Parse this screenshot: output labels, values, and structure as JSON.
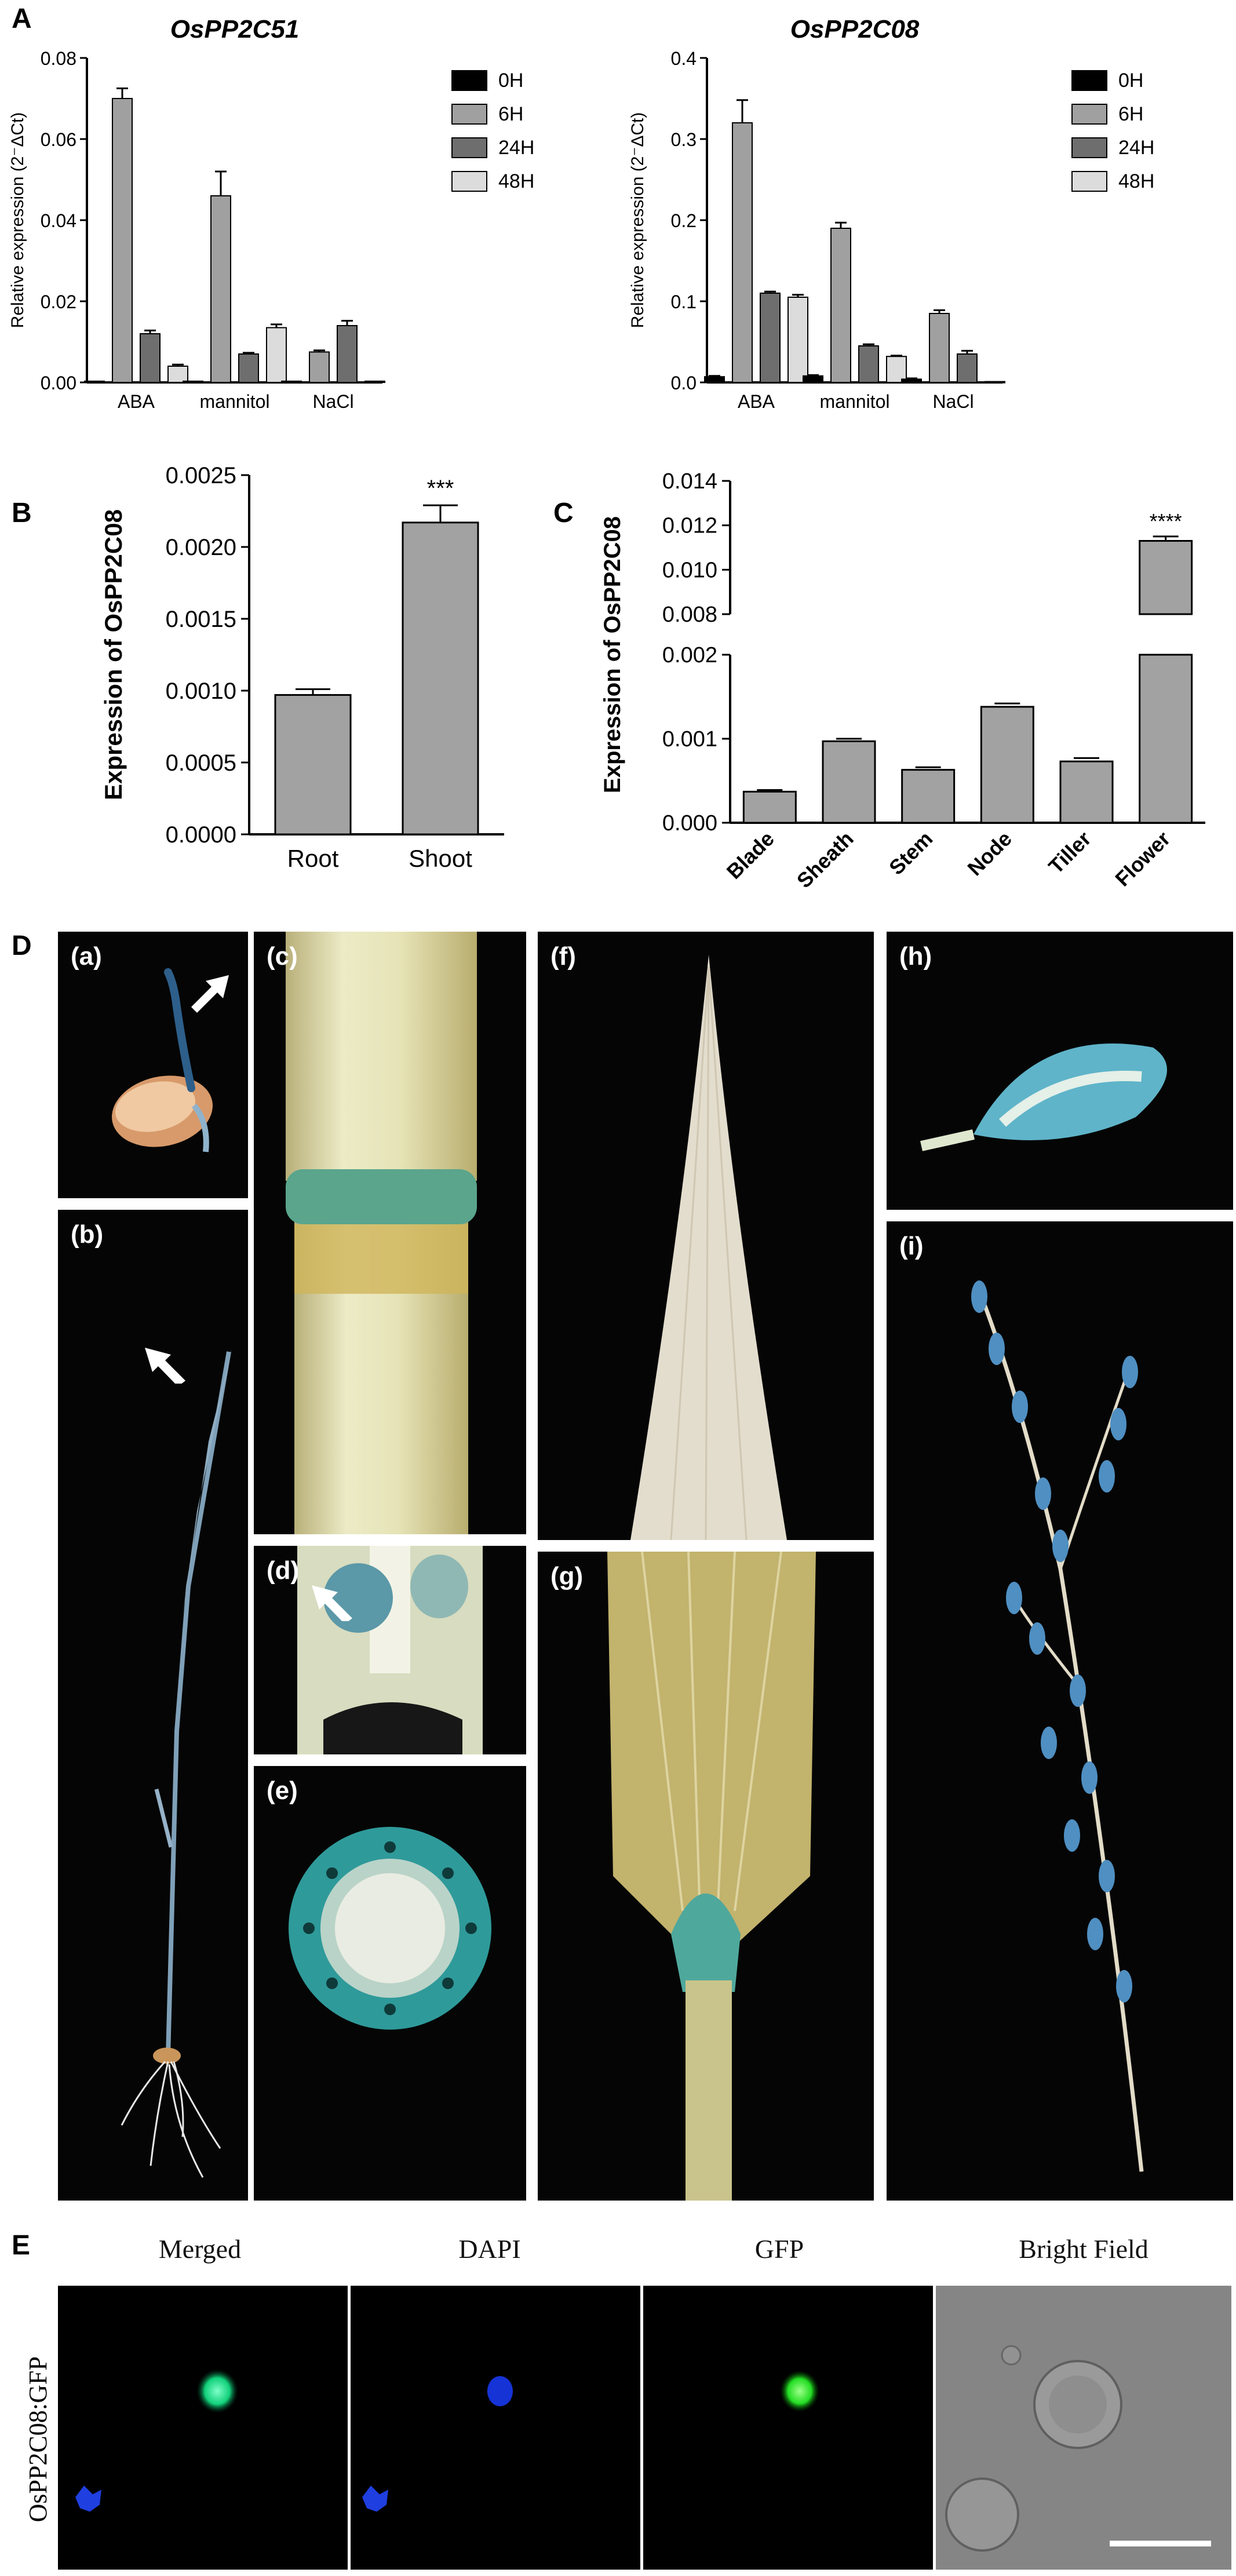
{
  "panels": {
    "A": "A",
    "B": "B",
    "C": "C",
    "D": "D",
    "E": "E"
  },
  "chart_data": [
    {
      "id": "A1",
      "type": "bar",
      "title": "OsPP2C51",
      "ylabel": "Relative expression (2⁻ΔCt)",
      "categories": [
        "ABA",
        "mannitol",
        "NaCl"
      ],
      "ylim": [
        0,
        0.08
      ],
      "yticks": [
        "0.00",
        "0.02",
        "0.04",
        "0.06",
        "0.08"
      ],
      "legend_position": "top-right",
      "series": [
        {
          "name": "0H",
          "color": "#000000",
          "values": [
            0.0003,
            0.0003,
            0.0003
          ],
          "err": [
            0,
            0,
            0
          ]
        },
        {
          "name": "6H",
          "color": "#a0a0a0",
          "values": [
            0.07,
            0.046,
            0.0075
          ],
          "err": [
            0.0025,
            0.006,
            0.0004
          ]
        },
        {
          "name": "24H",
          "color": "#6e6e6e",
          "values": [
            0.012,
            0.007,
            0.014
          ],
          "err": [
            0.0008,
            0.0003,
            0.0012
          ]
        },
        {
          "name": "48H",
          "color": "#dcdcdc",
          "values": [
            0.004,
            0.0135,
            0.0003
          ],
          "err": [
            0.0004,
            0.0008,
            0
          ]
        }
      ]
    },
    {
      "id": "A2",
      "type": "bar",
      "title": "OsPP2C08",
      "ylabel": "Relative expression (2⁻ΔCt)",
      "categories": [
        "ABA",
        "mannitol",
        "NaCl"
      ],
      "ylim": [
        0,
        0.4
      ],
      "yticks": [
        "0.0",
        "0.1",
        "0.2",
        "0.3",
        "0.4"
      ],
      "legend_position": "top-right",
      "series": [
        {
          "name": "0H",
          "color": "#000000",
          "values": [
            0.007,
            0.008,
            0.004
          ],
          "err": [
            0.001,
            0.001,
            0.001
          ]
        },
        {
          "name": "6H",
          "color": "#a0a0a0",
          "values": [
            0.32,
            0.19,
            0.085
          ],
          "err": [
            0.028,
            0.007,
            0.004
          ]
        },
        {
          "name": "24H",
          "color": "#6e6e6e",
          "values": [
            0.11,
            0.045,
            0.035
          ],
          "err": [
            0.002,
            0.002,
            0.004
          ]
        },
        {
          "name": "48H",
          "color": "#dcdcdc",
          "values": [
            0.105,
            0.032,
            0.001
          ],
          "err": [
            0.003,
            0.001,
            0
          ]
        }
      ]
    },
    {
      "id": "B",
      "type": "bar",
      "ylabel": "Expression of OsPP2C08",
      "categories": [
        "Root",
        "Shoot"
      ],
      "values": [
        0.00097,
        0.00217
      ],
      "err": [
        4e-05,
        0.00012
      ],
      "ylim": [
        0,
        0.0025
      ],
      "yticks": [
        "0.0000",
        "0.0005",
        "0.0010",
        "0.0015",
        "0.0020",
        "0.0025"
      ],
      "annotations": [
        "",
        "***"
      ]
    },
    {
      "id": "C",
      "type": "bar",
      "ylabel": "Expression of OsPP2C08",
      "categories": [
        "Blade",
        "Sheath",
        "Stem",
        "Node",
        "Tiller",
        "Flower"
      ],
      "values": [
        0.00037,
        0.00097,
        0.00063,
        0.00138,
        0.00073,
        0.0113
      ],
      "err": [
        2e-05,
        3e-05,
        3e-05,
        4e-05,
        4e-05,
        0.0002
      ],
      "axis_break": {
        "lower": [
          0,
          0.002
        ],
        "upper": [
          0.008,
          0.014
        ]
      },
      "yticks_lower": [
        "0.000",
        "0.001",
        "0.002"
      ],
      "yticks_upper": [
        "0.008",
        "0.010",
        "0.012",
        "0.014"
      ],
      "annotations": [
        "",
        "",
        "",
        "",
        "",
        "****"
      ]
    }
  ],
  "legend_labels": [
    "0H",
    "6H",
    "24H",
    "48H"
  ],
  "photos": {
    "a": "(a)",
    "b": "(b)",
    "c": "(c)",
    "d": "(d)",
    "e": "(e)",
    "f": "(f)",
    "g": "(g)",
    "h": "(h)",
    "i": "(i)"
  },
  "panel_e": {
    "titles": [
      "Merged",
      "DAPI",
      "GFP",
      "Bright Field"
    ],
    "row_label": "OsPP2C08:GFP"
  }
}
